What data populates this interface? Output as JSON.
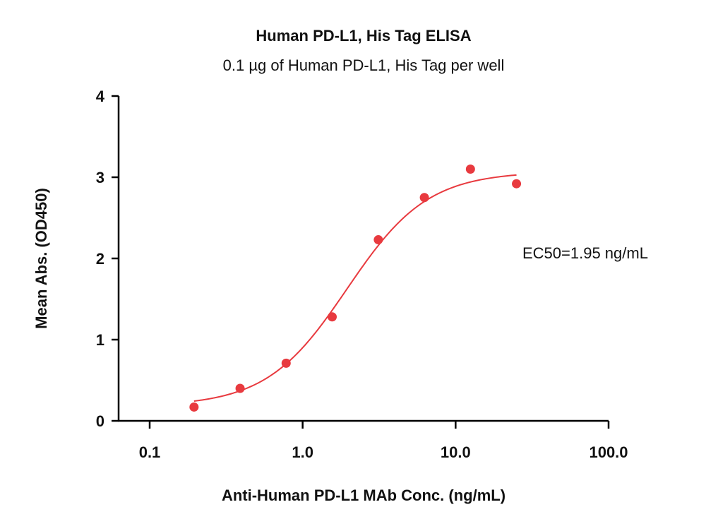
{
  "chart_data": {
    "type": "scatter",
    "title": "Human PD-L1, His Tag ELISA",
    "subtitle": "0.1 µg of Human PD-L1, His Tag per well",
    "xlabel": "Anti-Human PD-L1 MAb Conc. (ng/mL)",
    "ylabel": "Mean Abs. (OD450)",
    "x_scale": "log",
    "xlim": [
      0.1,
      100.0
    ],
    "ylim": [
      0,
      4
    ],
    "x_ticks": [
      "0.1",
      "1.0",
      "10.0",
      "100.0"
    ],
    "y_ticks": [
      "0",
      "1",
      "2",
      "3",
      "4"
    ],
    "grid": false,
    "series": [
      {
        "x": [
          0.195,
          0.39,
          0.78,
          1.56,
          3.125,
          6.25,
          12.5,
          25.0
        ],
        "y": [
          0.17,
          0.4,
          0.71,
          1.28,
          2.23,
          2.75,
          3.1,
          2.92
        ],
        "color": "#e83a3f"
      }
    ],
    "fit_curve": {
      "model": "4PL",
      "bottom": 0.18,
      "top": 3.07,
      "ec50": 1.95,
      "hill": 1.65,
      "x_range": [
        0.195,
        25.0
      ],
      "color": "#e83a3f"
    },
    "annotation": "EC50=1.95 ng/mL"
  }
}
